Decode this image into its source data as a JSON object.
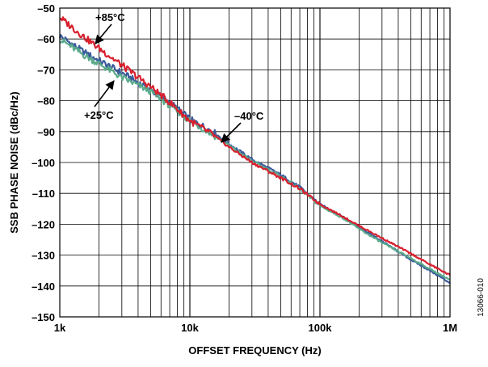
{
  "chart_data": {
    "type": "line",
    "xlabel": "OFFSET FREQUENCY (Hz)",
    "ylabel": "SSB PHASE NOISE (dBc/Hz)",
    "x_scale": "log",
    "xlim": [
      1000,
      1000000
    ],
    "ylim": [
      -150,
      -50
    ],
    "x_ticks": [
      {
        "value": 1000,
        "label": "1k"
      },
      {
        "value": 10000,
        "label": "10k"
      },
      {
        "value": 100000,
        "label": "100k"
      },
      {
        "value": 1000000,
        "label": "1M"
      }
    ],
    "y_ticks": [
      {
        "value": -50,
        "label": "–50"
      },
      {
        "value": -60,
        "label": "–60"
      },
      {
        "value": -70,
        "label": "–70"
      },
      {
        "value": -80,
        "label": "–80"
      },
      {
        "value": -90,
        "label": "–90"
      },
      {
        "value": -100,
        "label": "–100"
      },
      {
        "value": -110,
        "label": "–110"
      },
      {
        "value": -120,
        "label": "–120"
      },
      {
        "value": -130,
        "label": "–130"
      },
      {
        "value": -140,
        "label": "–140"
      },
      {
        "value": -150,
        "label": "–150"
      }
    ],
    "grid": true,
    "series": [
      {
        "color": "#3a5a9c",
        "points": [
          [
            1000,
            -59
          ],
          [
            1500,
            -64
          ],
          [
            2000,
            -67
          ],
          [
            3000,
            -71
          ],
          [
            5000,
            -76.5
          ],
          [
            7000,
            -80.5
          ],
          [
            10000,
            -86
          ],
          [
            15000,
            -90
          ],
          [
            20000,
            -94
          ],
          [
            30000,
            -99
          ],
          [
            50000,
            -104
          ],
          [
            70000,
            -108
          ],
          [
            100000,
            -113.5
          ],
          [
            150000,
            -117.5
          ],
          [
            200000,
            -121
          ],
          [
            300000,
            -125.5
          ],
          [
            500000,
            -131.5
          ],
          [
            700000,
            -135
          ],
          [
            1000000,
            -139
          ]
        ]
      },
      {
        "color": "#5aaa8a",
        "points": [
          [
            1000,
            -60
          ],
          [
            1500,
            -65
          ],
          [
            2000,
            -68
          ],
          [
            3000,
            -72.5
          ],
          [
            5000,
            -77
          ],
          [
            7000,
            -81.5
          ],
          [
            10000,
            -86.5
          ],
          [
            15000,
            -91
          ],
          [
            20000,
            -94.5
          ],
          [
            30000,
            -99.5
          ],
          [
            50000,
            -104.5
          ],
          [
            70000,
            -108.5
          ],
          [
            100000,
            -114
          ],
          [
            150000,
            -118
          ],
          [
            200000,
            -121.5
          ],
          [
            300000,
            -126
          ],
          [
            500000,
            -131
          ],
          [
            700000,
            -134.5
          ],
          [
            1000000,
            -138
          ]
        ]
      },
      {
        "color": "#d8202e",
        "points": [
          [
            1000,
            -53
          ],
          [
            1500,
            -59
          ],
          [
            2000,
            -63
          ],
          [
            3000,
            -68.5
          ],
          [
            5000,
            -75.5
          ],
          [
            7000,
            -80.5
          ],
          [
            10000,
            -86.5
          ],
          [
            15000,
            -91
          ],
          [
            20000,
            -95
          ],
          [
            30000,
            -100
          ],
          [
            50000,
            -105
          ],
          [
            70000,
            -108.5
          ],
          [
            100000,
            -113.5
          ],
          [
            150000,
            -117.5
          ],
          [
            200000,
            -120.5
          ],
          [
            300000,
            -124.5
          ],
          [
            500000,
            -129.5
          ],
          [
            700000,
            -133
          ],
          [
            1000000,
            -136.5
          ]
        ]
      }
    ],
    "annotations": [
      {
        "text": "+85°C"
      },
      {
        "text": "+25°C"
      },
      {
        "text": "–40°C"
      }
    ],
    "figure_id": "13066-010"
  }
}
